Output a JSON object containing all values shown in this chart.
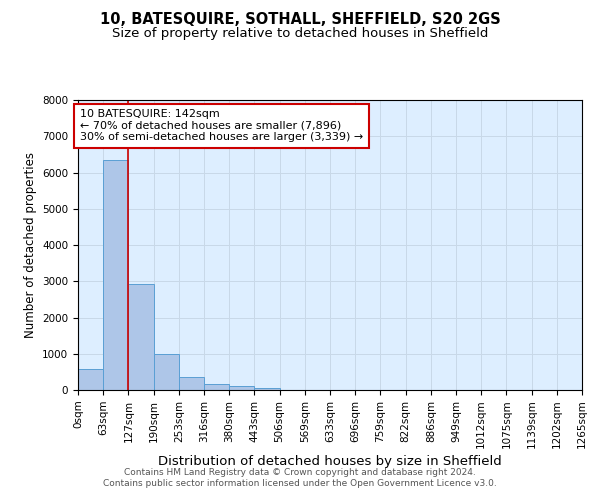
{
  "title": "10, BATESQUIRE, SOTHALL, SHEFFIELD, S20 2GS",
  "subtitle": "Size of property relative to detached houses in Sheffield",
  "xlabel": "Distribution of detached houses by size in Sheffield",
  "ylabel": "Number of detached properties",
  "bin_labels": [
    "0sqm",
    "63sqm",
    "127sqm",
    "190sqm",
    "253sqm",
    "316sqm",
    "380sqm",
    "443sqm",
    "506sqm",
    "569sqm",
    "633sqm",
    "696sqm",
    "759sqm",
    "822sqm",
    "886sqm",
    "949sqm",
    "1012sqm",
    "1075sqm",
    "1139sqm",
    "1202sqm",
    "1265sqm"
  ],
  "bar_values": [
    570,
    6350,
    2920,
    990,
    370,
    175,
    110,
    65,
    0,
    0,
    0,
    0,
    0,
    0,
    0,
    0,
    0,
    0,
    0,
    0
  ],
  "bar_color": "#aec6e8",
  "bar_edge_color": "#5a9fd4",
  "vline_x": 2,
  "vline_color": "#cc0000",
  "annotation_line1": "10 BATESQUIRE: 142sqm",
  "annotation_line2": "← 70% of detached houses are smaller (7,896)",
  "annotation_line3": "30% of semi-detached houses are larger (3,339) →",
  "annotation_box_color": "#cc0000",
  "ylim": [
    0,
    8000
  ],
  "yticks": [
    0,
    1000,
    2000,
    3000,
    4000,
    5000,
    6000,
    7000,
    8000
  ],
  "grid_color": "#c8d8e8",
  "bg_color": "#ddeeff",
  "footer_text": "Contains HM Land Registry data © Crown copyright and database right 2024.\nContains public sector information licensed under the Open Government Licence v3.0.",
  "title_fontsize": 10.5,
  "subtitle_fontsize": 9.5,
  "xlabel_fontsize": 9.5,
  "ylabel_fontsize": 8.5,
  "tick_fontsize": 7.5,
  "annotation_fontsize": 8,
  "footer_fontsize": 6.5
}
